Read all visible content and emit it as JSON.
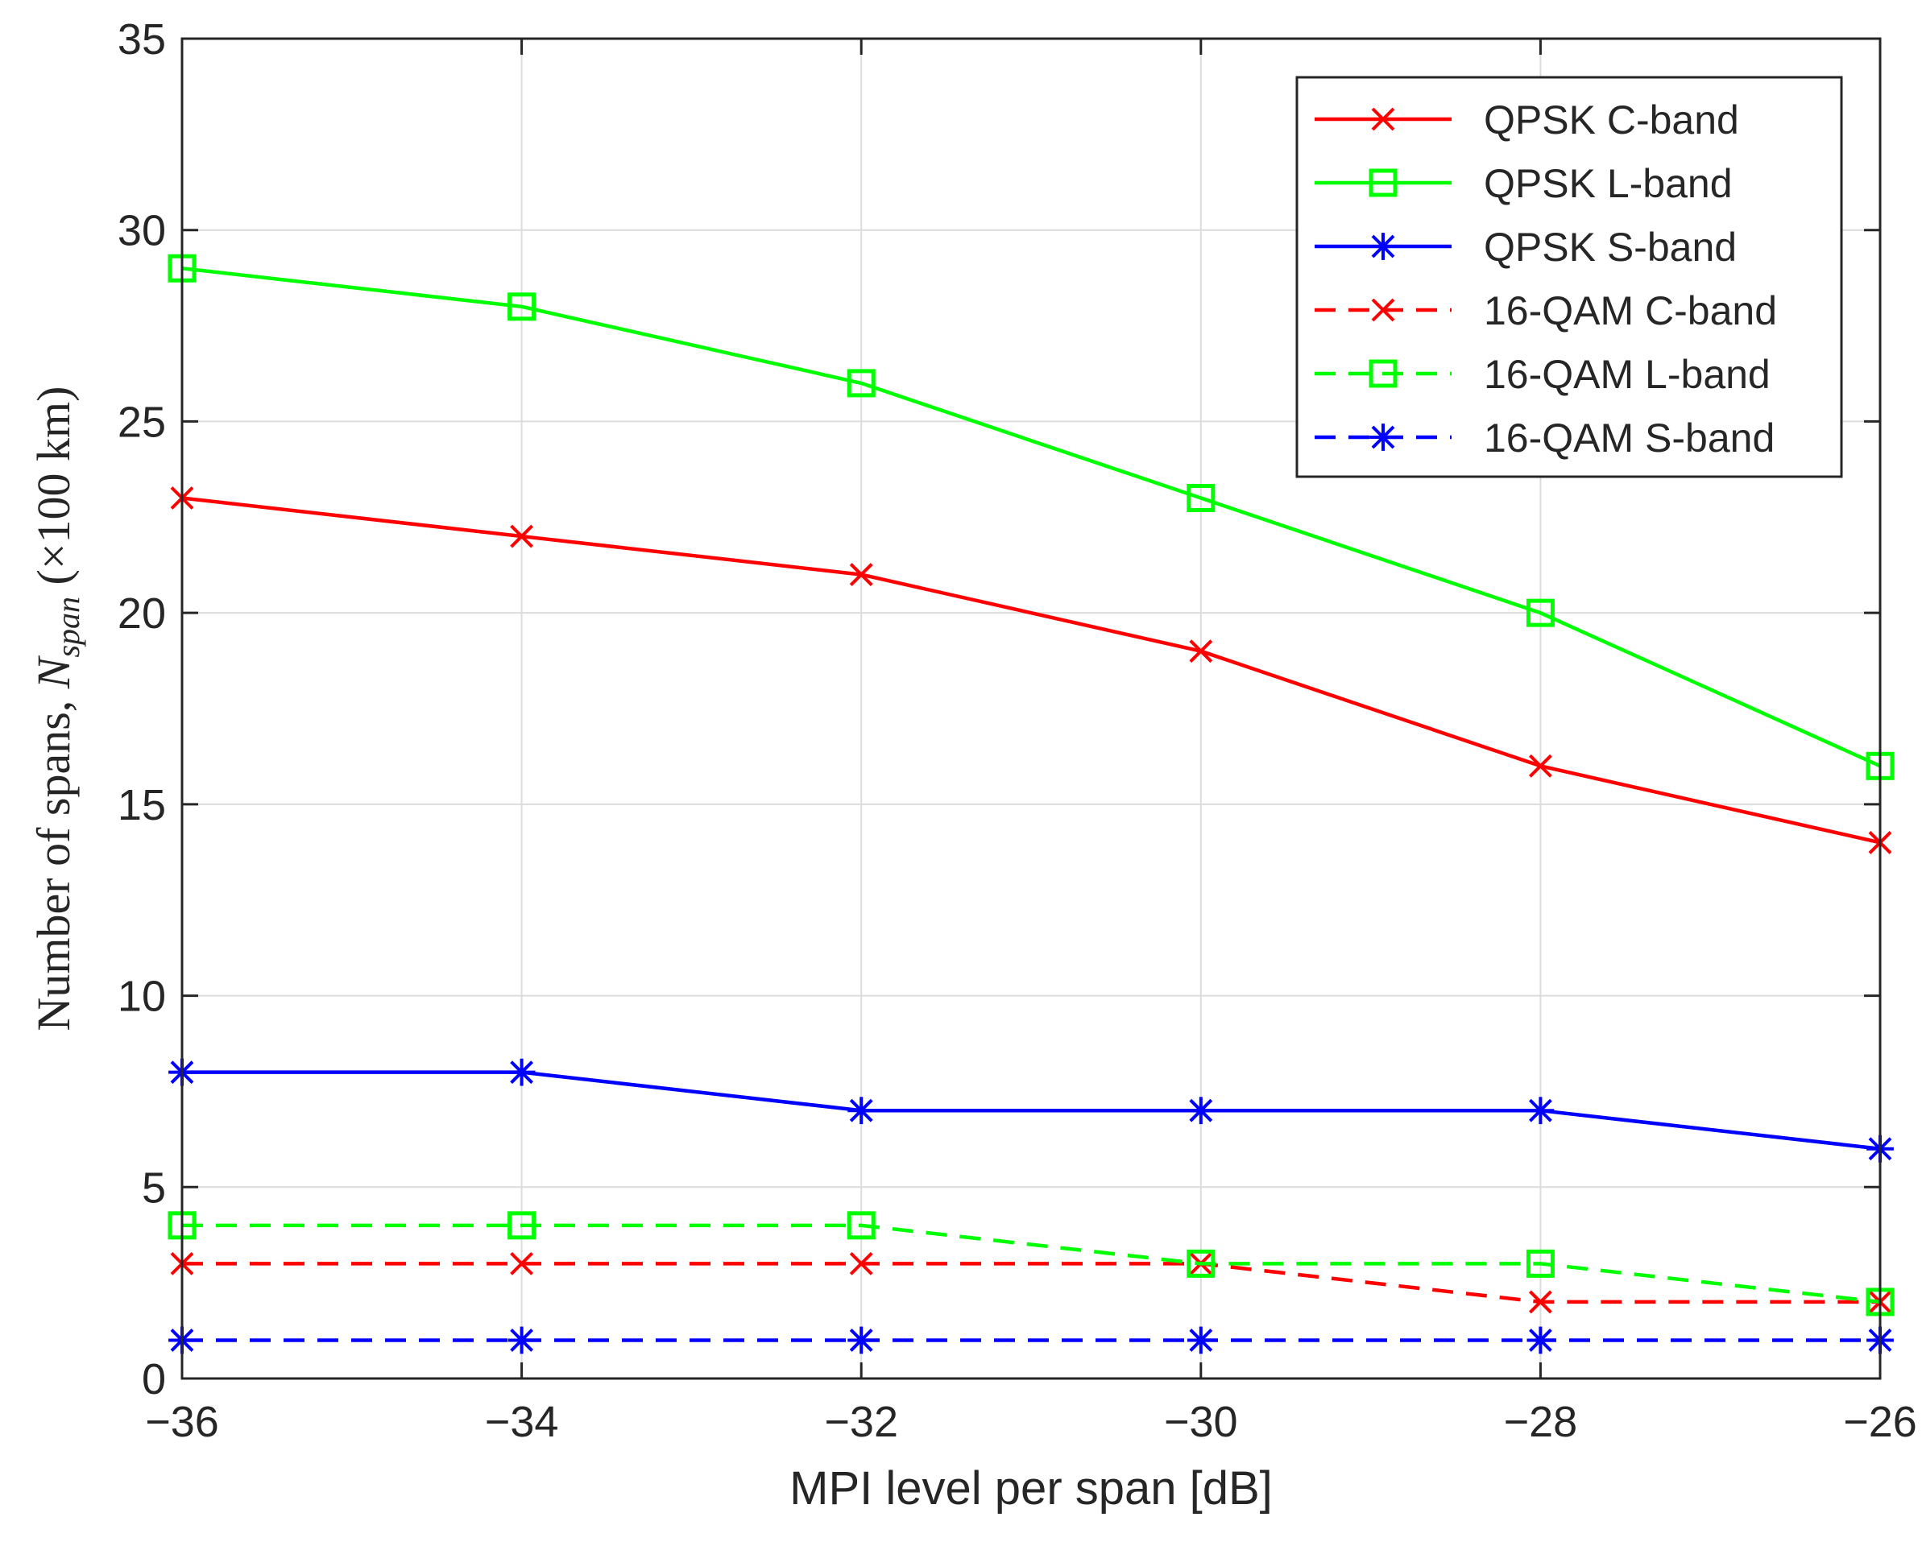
{
  "chart_data": {
    "type": "line",
    "title": "",
    "xlabel": "MPI level per span [dB]",
    "ylabel": {
      "main": "Number of spans, ",
      "symbol": "N",
      "subscript": "span",
      "unit": " (×100 km)"
    },
    "x": [
      -36,
      -34,
      -32,
      -30,
      -28,
      -26
    ],
    "xlim": [
      -36,
      -26
    ],
    "ylim": [
      0,
      35
    ],
    "xticks": [
      -36,
      -34,
      -32,
      -30,
      -28,
      -26
    ],
    "xtick_labels": [
      "−36",
      "−34",
      "−32",
      "−30",
      "−28",
      "−26"
    ],
    "yticks": [
      0,
      5,
      10,
      15,
      20,
      25,
      30,
      35
    ],
    "ytick_labels": [
      "0",
      "5",
      "10",
      "15",
      "20",
      "25",
      "30",
      "35"
    ],
    "grid": true,
    "legend_position": "top-right",
    "series": [
      {
        "name": "QPSK C-band",
        "values": [
          23,
          22,
          21,
          19,
          16,
          14
        ],
        "color": "#ff0000",
        "marker": "x",
        "dash": "solid"
      },
      {
        "name": "QPSK L-band",
        "values": [
          29,
          28,
          26,
          23,
          20,
          16
        ],
        "color": "#00ff00",
        "marker": "square",
        "dash": "solid"
      },
      {
        "name": "QPSK S-band",
        "values": [
          8,
          8,
          7,
          7,
          7,
          6
        ],
        "color": "#0000ff",
        "marker": "asterisk",
        "dash": "solid"
      },
      {
        "name": "16-QAM C-band",
        "values": [
          3,
          3,
          3,
          3,
          2,
          2
        ],
        "color": "#ff0000",
        "marker": "x",
        "dash": "dashed"
      },
      {
        "name": "16-QAM L-band",
        "values": [
          4,
          4,
          4,
          3,
          3,
          2
        ],
        "color": "#00ff00",
        "marker": "square",
        "dash": "dashed"
      },
      {
        "name": "16-QAM S-band",
        "values": [
          1,
          1,
          1,
          1,
          1,
          1
        ],
        "color": "#0000ff",
        "marker": "asterisk",
        "dash": "dashed"
      }
    ]
  }
}
